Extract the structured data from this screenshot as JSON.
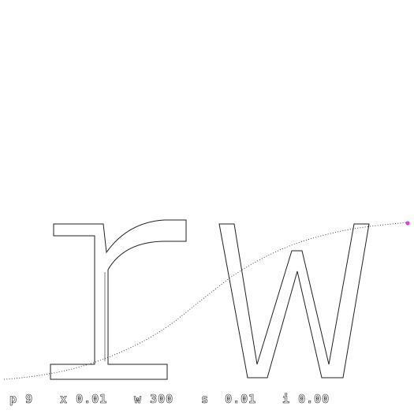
{
  "glyphs": {
    "text": "rw",
    "stroke_color": "#222222",
    "fill_color": "#ffffff"
  },
  "trace": {
    "color": "#333333",
    "end_marker_color": "#e040e0"
  },
  "params": [
    {
      "key": "p",
      "value": "9"
    },
    {
      "key": "x",
      "value": "0.01"
    },
    {
      "key": "w",
      "value": "300"
    },
    {
      "key": "s",
      "value": "0.01"
    },
    {
      "key": "i",
      "value": "0.00"
    }
  ]
}
